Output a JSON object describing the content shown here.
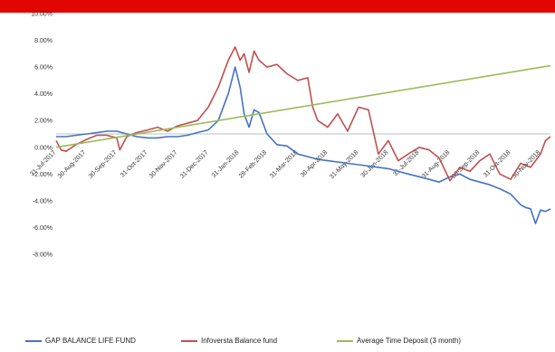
{
  "chart_data": {
    "type": "line",
    "title": "",
    "xlabel": "",
    "ylabel": "",
    "ylim": [
      -8,
      10
    ],
    "y_ticks": [
      "10.00%",
      "8.00%",
      "6.00%",
      "4.00%",
      "2.00%",
      "0.00%",
      "-2.00%",
      "-4.00%",
      "-6.00%",
      "-8.00%"
    ],
    "x_ticks": [
      "31-Jul-2017",
      "30-Aug-2017",
      "30-Sep-2017",
      "31-Oct-2017",
      "30-Nov-2017",
      "31-Dec-2017",
      "31-Jan-2018",
      "28-Feb-2018",
      "31-Mar-2018",
      "30-Apr-2018",
      "31-May-2018",
      "30-Jun-2018",
      "31-Jul-2018",
      "31-Aug-2018",
      "30-Sep-2018",
      "31-Oct-2018",
      "30-Nov-2018"
    ],
    "grid": false,
    "legend": "bottom",
    "series": [
      {
        "name": "GAP BALANCE LIFE FUND",
        "color": "#4472c4",
        "points": [
          [
            "2017-07-31",
            0.8
          ],
          [
            "2017-08-10",
            0.8
          ],
          [
            "2017-08-20",
            0.9
          ],
          [
            "2017-08-31",
            1.0
          ],
          [
            "2017-09-10",
            1.1
          ],
          [
            "2017-09-20",
            1.2
          ],
          [
            "2017-09-30",
            1.2
          ],
          [
            "2017-10-10",
            1.0
          ],
          [
            "2017-10-20",
            0.8
          ],
          [
            "2017-10-31",
            0.7
          ],
          [
            "2017-11-10",
            0.7
          ],
          [
            "2017-11-20",
            0.8
          ],
          [
            "2017-11-30",
            0.8
          ],
          [
            "2017-12-10",
            0.9
          ],
          [
            "2017-12-20",
            1.1
          ],
          [
            "2017-12-31",
            1.3
          ],
          [
            "2018-01-10",
            2.0
          ],
          [
            "2018-01-20",
            4.0
          ],
          [
            "2018-01-27",
            6.0
          ],
          [
            "2018-02-01",
            4.5
          ],
          [
            "2018-02-05",
            2.5
          ],
          [
            "2018-02-10",
            1.5
          ],
          [
            "2018-02-15",
            2.8
          ],
          [
            "2018-02-20",
            2.6
          ],
          [
            "2018-02-28",
            1.0
          ],
          [
            "2018-03-10",
            0.2
          ],
          [
            "2018-03-20",
            0.1
          ],
          [
            "2018-03-31",
            -0.5
          ],
          [
            "2018-04-10",
            -0.7
          ],
          [
            "2018-04-20",
            -0.9
          ],
          [
            "2018-04-30",
            -1.0
          ],
          [
            "2018-05-10",
            -1.1
          ],
          [
            "2018-05-20",
            -1.2
          ],
          [
            "2018-05-31",
            -1.3
          ],
          [
            "2018-06-10",
            -1.4
          ],
          [
            "2018-06-20",
            -1.5
          ],
          [
            "2018-06-30",
            -1.6
          ],
          [
            "2018-07-10",
            -1.8
          ],
          [
            "2018-07-20",
            -2.0
          ],
          [
            "2018-07-31",
            -2.2
          ],
          [
            "2018-08-10",
            -2.4
          ],
          [
            "2018-08-20",
            -2.6
          ],
          [
            "2018-08-31",
            -2.2
          ],
          [
            "2018-09-10",
            -2.0
          ],
          [
            "2018-09-20",
            -2.4
          ],
          [
            "2018-09-30",
            -2.6
          ],
          [
            "2018-10-10",
            -2.8
          ],
          [
            "2018-10-20",
            -3.1
          ],
          [
            "2018-10-31",
            -3.5
          ],
          [
            "2018-11-10",
            -4.3
          ],
          [
            "2018-11-15",
            -4.5
          ],
          [
            "2018-11-20",
            -4.6
          ],
          [
            "2018-11-25",
            -5.7
          ],
          [
            "2018-11-30",
            -4.7
          ],
          [
            "2018-12-05",
            -4.8
          ],
          [
            "2018-12-10",
            -4.6
          ]
        ]
      },
      {
        "name": "Infoversta Balance fund",
        "color": "#c0504d",
        "points": [
          [
            "2017-07-31",
            0.5
          ],
          [
            "2017-08-05",
            -0.2
          ],
          [
            "2017-08-10",
            -0.3
          ],
          [
            "2017-08-20",
            0.2
          ],
          [
            "2017-08-31",
            0.6
          ],
          [
            "2017-09-10",
            0.9
          ],
          [
            "2017-09-20",
            0.9
          ],
          [
            "2017-09-30",
            0.7
          ],
          [
            "2017-10-03",
            -0.2
          ],
          [
            "2017-10-10",
            0.8
          ],
          [
            "2017-10-20",
            1.1
          ],
          [
            "2017-10-31",
            1.3
          ],
          [
            "2017-11-10",
            1.5
          ],
          [
            "2017-11-20",
            1.2
          ],
          [
            "2017-11-30",
            1.6
          ],
          [
            "2017-12-10",
            1.8
          ],
          [
            "2017-12-20",
            2.0
          ],
          [
            "2017-12-31",
            3.0
          ],
          [
            "2018-01-10",
            4.5
          ],
          [
            "2018-01-20",
            6.5
          ],
          [
            "2018-01-27",
            7.5
          ],
          [
            "2018-02-01",
            6.5
          ],
          [
            "2018-02-05",
            7.0
          ],
          [
            "2018-02-10",
            5.6
          ],
          [
            "2018-02-15",
            7.2
          ],
          [
            "2018-02-20",
            6.5
          ],
          [
            "2018-02-28",
            6.0
          ],
          [
            "2018-03-10",
            6.2
          ],
          [
            "2018-03-20",
            5.5
          ],
          [
            "2018-03-31",
            5.0
          ],
          [
            "2018-04-10",
            5.2
          ],
          [
            "2018-04-15",
            3.0
          ],
          [
            "2018-04-20",
            2.0
          ],
          [
            "2018-04-30",
            1.5
          ],
          [
            "2018-05-10",
            2.5
          ],
          [
            "2018-05-20",
            1.2
          ],
          [
            "2018-05-31",
            3.0
          ],
          [
            "2018-06-10",
            2.8
          ],
          [
            "2018-06-20",
            -0.5
          ],
          [
            "2018-06-30",
            0.5
          ],
          [
            "2018-07-10",
            -1.0
          ],
          [
            "2018-07-20",
            -0.5
          ],
          [
            "2018-07-31",
            0.0
          ],
          [
            "2018-08-10",
            -0.2
          ],
          [
            "2018-08-20",
            -0.8
          ],
          [
            "2018-08-31",
            -2.5
          ],
          [
            "2018-09-10",
            -1.5
          ],
          [
            "2018-09-20",
            -1.8
          ],
          [
            "2018-09-30",
            -1.0
          ],
          [
            "2018-10-10",
            -0.5
          ],
          [
            "2018-10-20",
            -2.0
          ],
          [
            "2018-10-31",
            -2.4
          ],
          [
            "2018-11-10",
            -1.2
          ],
          [
            "2018-11-20",
            -1.5
          ],
          [
            "2018-11-30",
            -0.5
          ],
          [
            "2018-12-05",
            0.5
          ],
          [
            "2018-12-10",
            0.8
          ]
        ]
      },
      {
        "name": "Average Time Deposit (3 month)",
        "color": "#9bbb59",
        "points": [
          [
            "2017-07-31",
            0.0
          ],
          [
            "2018-12-10",
            6.1
          ]
        ]
      }
    ]
  }
}
